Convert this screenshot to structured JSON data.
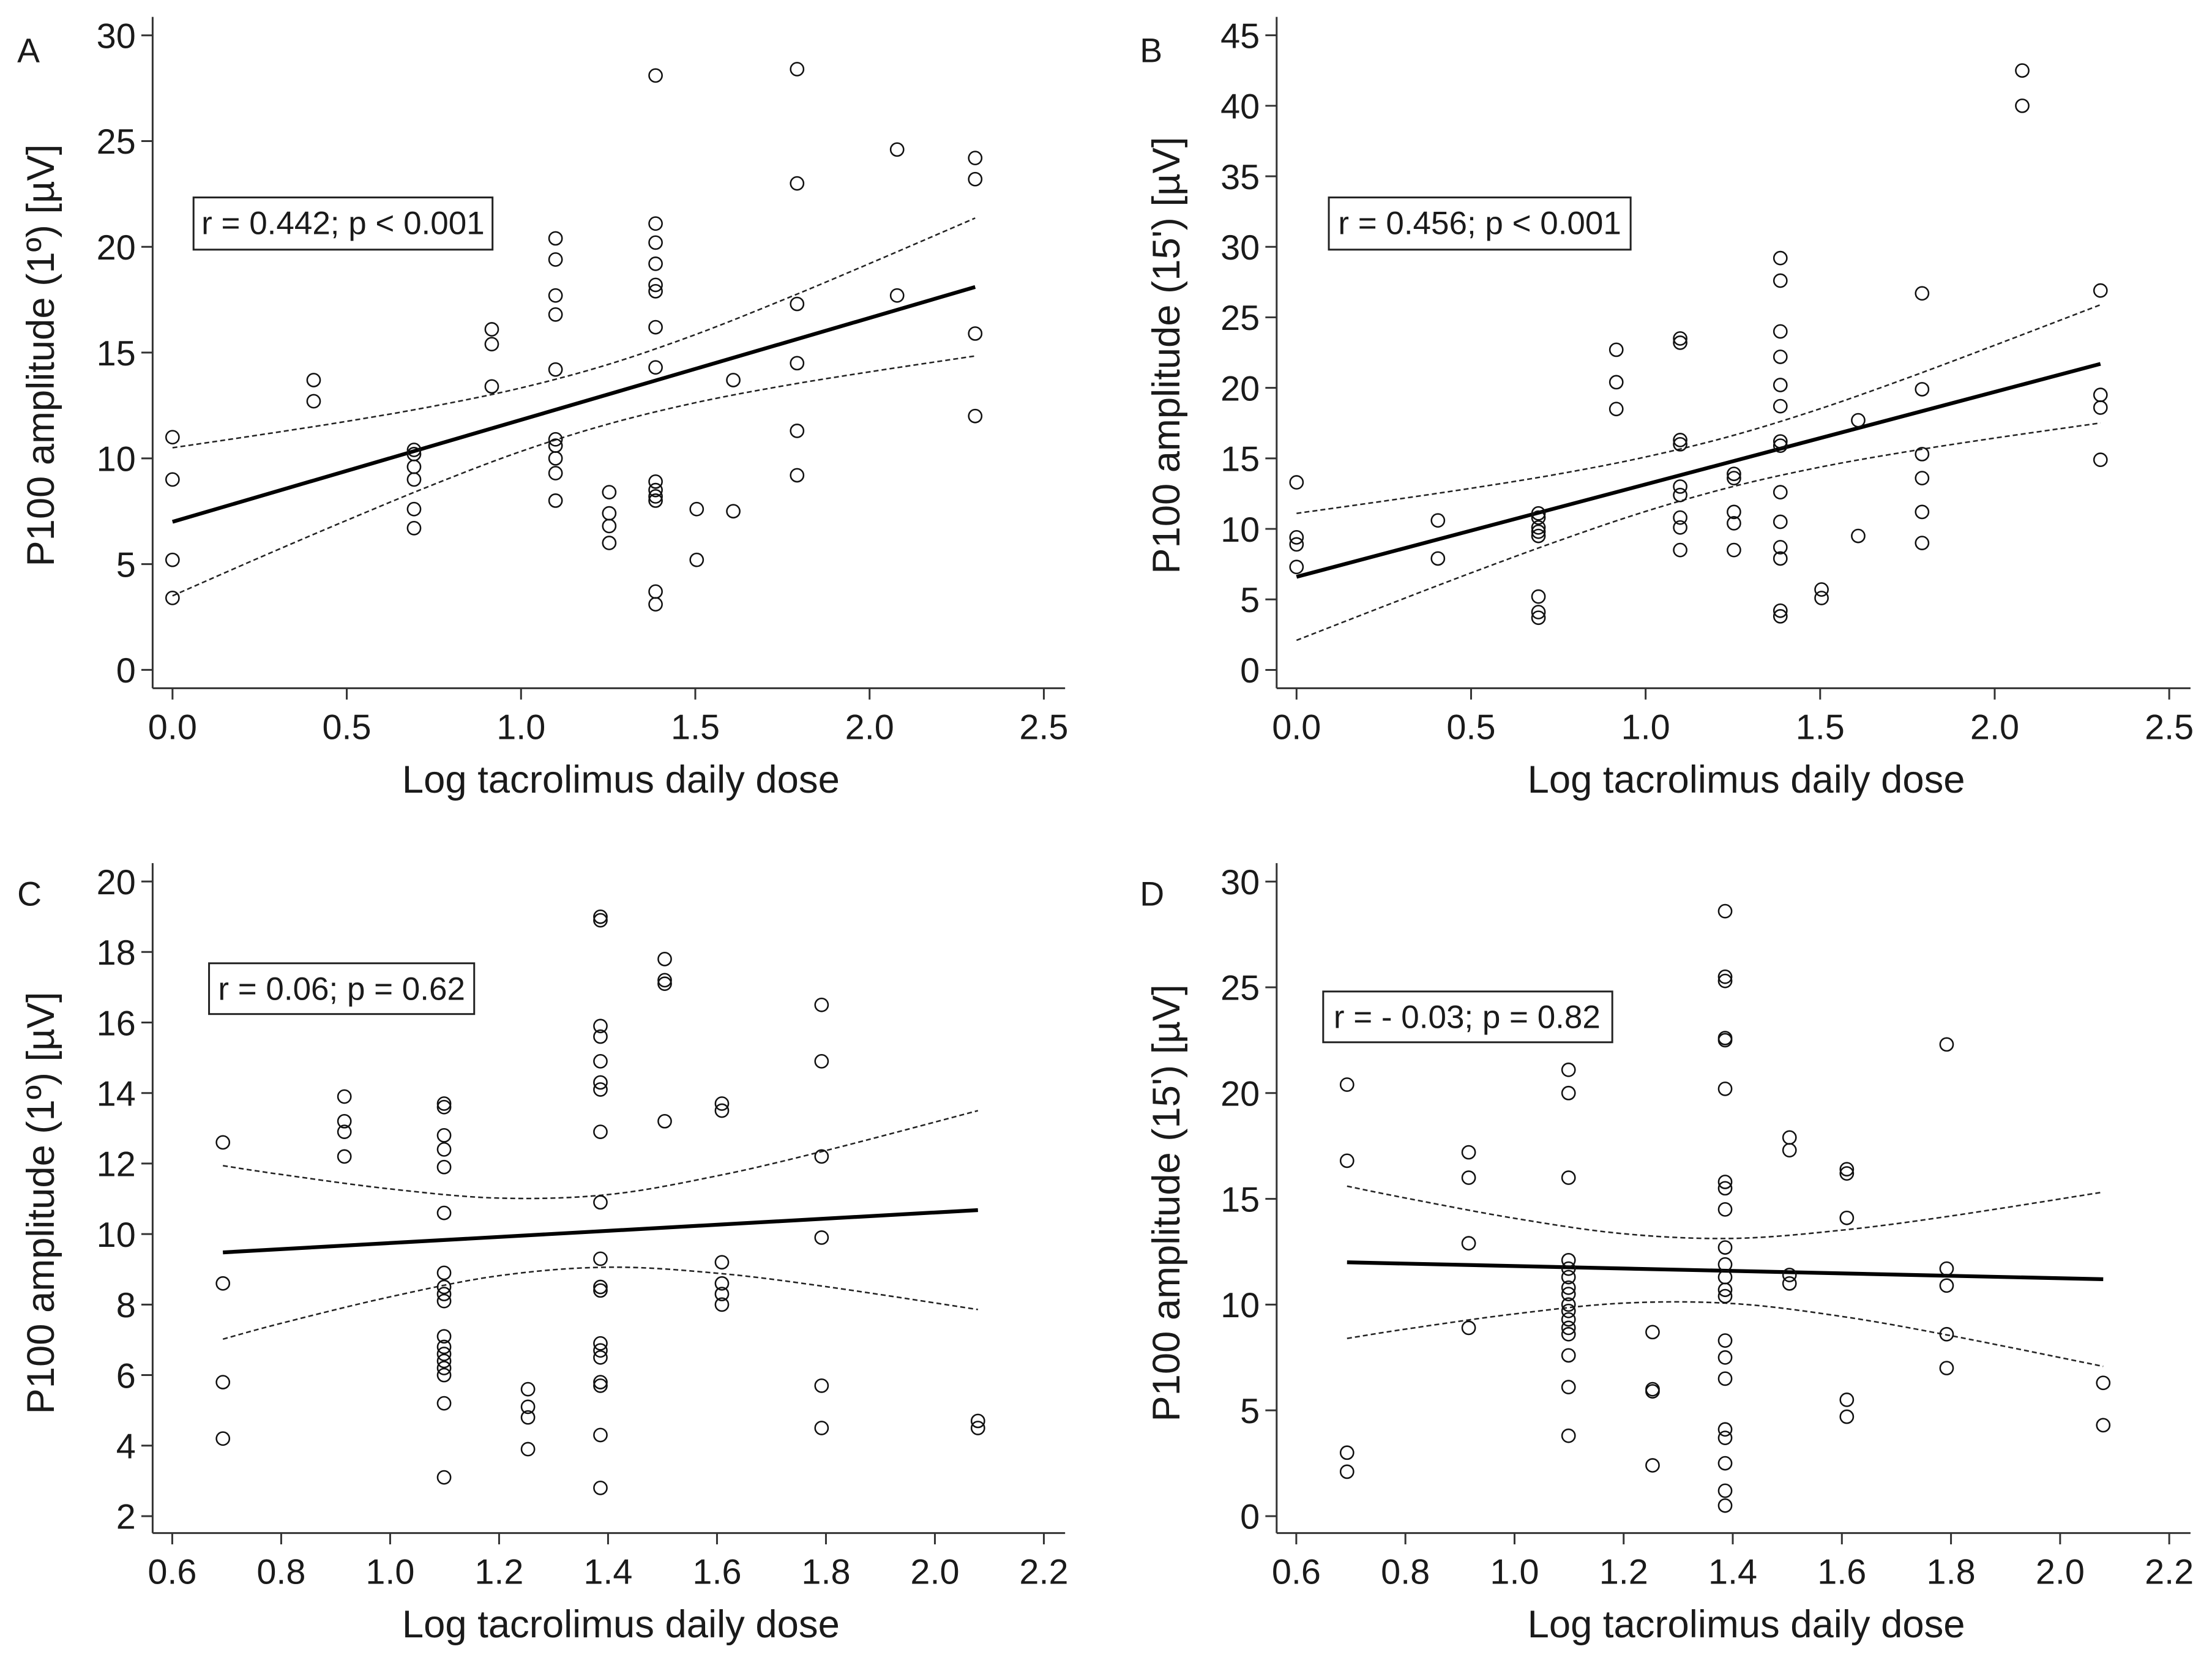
{
  "chart_data": [
    {
      "panel": "A",
      "type": "scatter",
      "xlabel": "Log tacrolimus daily dose",
      "ylabel": "P100 amplitude (1º) [µV]",
      "annotation": "r = 0.442; p < 0.001",
      "xlim": [
        -0.057,
        2.561
      ],
      "ylim": [
        -0.87,
        30.87
      ],
      "x_ticks": [
        0,
        0.5,
        1.0,
        1.5,
        2.0,
        2.5
      ],
      "x_tick_labels": [
        "0.0",
        "0.5",
        "1.0",
        "1.5",
        "2.0",
        "2.5"
      ],
      "y_ticks": [
        0,
        5,
        10,
        15,
        20,
        25,
        30
      ],
      "y_tick_labels": [
        "0",
        "5",
        "10",
        "15",
        "20",
        "25",
        "30"
      ],
      "points": [
        [
          0,
          11.0
        ],
        [
          0,
          9.0
        ],
        [
          0,
          5.2
        ],
        [
          0,
          3.4
        ],
        [
          0.405,
          13.7
        ],
        [
          0.405,
          12.7
        ],
        [
          0.693,
          10.4
        ],
        [
          0.693,
          10.2
        ],
        [
          0.693,
          9.6
        ],
        [
          0.693,
          9.0
        ],
        [
          0.693,
          7.6
        ],
        [
          0.693,
          6.7
        ],
        [
          0.916,
          16.1
        ],
        [
          0.916,
          15.4
        ],
        [
          0.916,
          13.4
        ],
        [
          1.099,
          20.4
        ],
        [
          1.099,
          19.4
        ],
        [
          1.099,
          17.7
        ],
        [
          1.099,
          16.8
        ],
        [
          1.099,
          14.2
        ],
        [
          1.099,
          10.9
        ],
        [
          1.099,
          10.6
        ],
        [
          1.099,
          10.0
        ],
        [
          1.099,
          9.3
        ],
        [
          1.099,
          8.0
        ],
        [
          1.253,
          8.4
        ],
        [
          1.253,
          7.4
        ],
        [
          1.253,
          6.8
        ],
        [
          1.253,
          6.0
        ],
        [
          1.386,
          28.1
        ],
        [
          1.386,
          21.1
        ],
        [
          1.386,
          20.2
        ],
        [
          1.386,
          19.2
        ],
        [
          1.386,
          18.2
        ],
        [
          1.386,
          17.9
        ],
        [
          1.386,
          16.2
        ],
        [
          1.386,
          14.3
        ],
        [
          1.386,
          8.9
        ],
        [
          1.386,
          8.5
        ],
        [
          1.386,
          8.2
        ],
        [
          1.386,
          8.0
        ],
        [
          1.386,
          3.7
        ],
        [
          1.386,
          3.1
        ],
        [
          1.504,
          7.6
        ],
        [
          1.504,
          5.2
        ],
        [
          1.609,
          13.7
        ],
        [
          1.609,
          7.5
        ],
        [
          1.792,
          28.4
        ],
        [
          1.792,
          23.0
        ],
        [
          1.792,
          17.3
        ],
        [
          1.792,
          14.5
        ],
        [
          1.792,
          11.3
        ],
        [
          1.792,
          9.2
        ],
        [
          2.079,
          24.6
        ],
        [
          2.079,
          17.7
        ],
        [
          2.303,
          24.2
        ],
        [
          2.303,
          23.2
        ],
        [
          2.303,
          15.9
        ],
        [
          2.303,
          12.0
        ]
      ],
      "regression": {
        "x": [
          0,
          2.303
        ],
        "y": [
          7.0,
          18.1
        ]
      },
      "ci": {
        "x": [
          0,
          0.25,
          0.5,
          0.75,
          1.0,
          1.25,
          1.5,
          1.75,
          2.0,
          2.303
        ],
        "upper": [
          10.5,
          11.11,
          11.75,
          12.47,
          13.33,
          14.44,
          15.85,
          17.48,
          19.21,
          21.36
        ],
        "lower": [
          3.5,
          5.31,
          7.07,
          8.77,
          10.33,
          11.62,
          12.63,
          13.42,
          14.09,
          14.84
        ]
      }
    },
    {
      "panel": "B",
      "type": "scatter",
      "xlabel": "Log tacrolimus daily dose",
      "ylabel": "P100 amplitude (15') [µV]",
      "annotation": "r = 0.456; p < 0.001",
      "xlim": [
        -0.057,
        2.561
      ],
      "ylim": [
        -1.3,
        46.3
      ],
      "x_ticks": [
        0,
        0.5,
        1.0,
        1.5,
        2.0,
        2.5
      ],
      "x_tick_labels": [
        "0.0",
        "0.5",
        "1.0",
        "1.5",
        "2.0",
        "2.5"
      ],
      "y_ticks": [
        0,
        5,
        10,
        15,
        20,
        25,
        30,
        35,
        40,
        45
      ],
      "y_tick_labels": [
        "0",
        "5",
        "10",
        "15",
        "20",
        "25",
        "30",
        "35",
        "40",
        "45"
      ],
      "points": [
        [
          0,
          13.3
        ],
        [
          0,
          9.4
        ],
        [
          0,
          8.9
        ],
        [
          0,
          7.3
        ],
        [
          0.405,
          10.6
        ],
        [
          0.405,
          7.9
        ],
        [
          0.693,
          11.1
        ],
        [
          0.693,
          10.8
        ],
        [
          0.693,
          10.1
        ],
        [
          0.693,
          9.8
        ],
        [
          0.693,
          9.5
        ],
        [
          0.693,
          5.2
        ],
        [
          0.693,
          4.1
        ],
        [
          0.693,
          3.7
        ],
        [
          0.916,
          22.7
        ],
        [
          0.916,
          20.4
        ],
        [
          0.916,
          18.5
        ],
        [
          1.099,
          23.5
        ],
        [
          1.099,
          23.2
        ],
        [
          1.099,
          16.3
        ],
        [
          1.099,
          16.0
        ],
        [
          1.099,
          13.0
        ],
        [
          1.099,
          12.4
        ],
        [
          1.099,
          10.8
        ],
        [
          1.099,
          10.1
        ],
        [
          1.099,
          8.5
        ],
        [
          1.253,
          13.9
        ],
        [
          1.253,
          13.6
        ],
        [
          1.253,
          11.2
        ],
        [
          1.253,
          10.4
        ],
        [
          1.253,
          8.5
        ],
        [
          1.386,
          29.2
        ],
        [
          1.386,
          27.6
        ],
        [
          1.386,
          24.0
        ],
        [
          1.386,
          22.2
        ],
        [
          1.386,
          20.2
        ],
        [
          1.386,
          18.7
        ],
        [
          1.386,
          16.2
        ],
        [
          1.386,
          15.9
        ],
        [
          1.386,
          12.6
        ],
        [
          1.386,
          10.5
        ],
        [
          1.386,
          8.7
        ],
        [
          1.386,
          7.9
        ],
        [
          1.386,
          4.2
        ],
        [
          1.386,
          3.8
        ],
        [
          1.504,
          5.7
        ],
        [
          1.504,
          5.1
        ],
        [
          1.609,
          17.7
        ],
        [
          1.609,
          9.5
        ],
        [
          1.792,
          26.7
        ],
        [
          1.792,
          19.9
        ],
        [
          1.792,
          15.3
        ],
        [
          1.792,
          13.6
        ],
        [
          1.792,
          11.2
        ],
        [
          1.792,
          9.0
        ],
        [
          2.079,
          42.5
        ],
        [
          2.079,
          40.0
        ],
        [
          2.303,
          26.9
        ],
        [
          2.303,
          19.5
        ],
        [
          2.303,
          18.6
        ],
        [
          2.303,
          14.9
        ]
      ],
      "regression": {
        "x": [
          0,
          2.303
        ],
        "y": [
          6.6,
          21.7
        ]
      },
      "ci": {
        "x": [
          0,
          0.25,
          0.5,
          0.75,
          1.0,
          1.25,
          1.5,
          1.75,
          2.0,
          2.303
        ],
        "upper": [
          11.1,
          11.97,
          12.88,
          13.89,
          15.1,
          16.62,
          18.52,
          20.7,
          23.02,
          25.89
        ],
        "lower": [
          2.1,
          4.51,
          6.88,
          9.15,
          11.24,
          13.0,
          14.38,
          15.48,
          16.44,
          17.51
        ]
      }
    },
    {
      "panel": "C",
      "type": "scatter",
      "xlabel": "Log tacrolimus daily dose",
      "ylabel": "P100 amplitude (1º) [µV]",
      "annotation": "r = 0.06; p = 0.62",
      "xlim": [
        0.564,
        2.239
      ],
      "ylim": [
        1.52,
        20.52
      ],
      "x_ticks": [
        0.6,
        0.8,
        1.0,
        1.2,
        1.4,
        1.6,
        1.8,
        2.0,
        2.2
      ],
      "x_tick_labels": [
        "0.6",
        "0.8",
        "1.0",
        "1.2",
        "1.4",
        "1.6",
        "1.8",
        "2.0",
        "2.2"
      ],
      "y_ticks": [
        2,
        4,
        6,
        8,
        10,
        12,
        14,
        16,
        18,
        20
      ],
      "y_tick_labels": [
        "2",
        "4",
        "6",
        "8",
        "10",
        "12",
        "14",
        "16",
        "18",
        "20"
      ],
      "points": [
        [
          0.693,
          12.6
        ],
        [
          0.693,
          8.6
        ],
        [
          0.693,
          5.8
        ],
        [
          0.693,
          4.2
        ],
        [
          0.916,
          13.9
        ],
        [
          0.916,
          13.2
        ],
        [
          0.916,
          12.9
        ],
        [
          0.916,
          12.2
        ],
        [
          1.099,
          13.7
        ],
        [
          1.099,
          13.6
        ],
        [
          1.099,
          12.8
        ],
        [
          1.099,
          12.4
        ],
        [
          1.099,
          11.9
        ],
        [
          1.099,
          10.6
        ],
        [
          1.099,
          8.9
        ],
        [
          1.099,
          8.5
        ],
        [
          1.099,
          8.3
        ],
        [
          1.099,
          8.1
        ],
        [
          1.099,
          7.1
        ],
        [
          1.099,
          6.8
        ],
        [
          1.099,
          6.6
        ],
        [
          1.099,
          6.4
        ],
        [
          1.099,
          6.2
        ],
        [
          1.099,
          6.0
        ],
        [
          1.099,
          5.2
        ],
        [
          1.099,
          3.1
        ],
        [
          1.253,
          5.6
        ],
        [
          1.253,
          5.1
        ],
        [
          1.253,
          4.8
        ],
        [
          1.253,
          3.9
        ],
        [
          1.386,
          19.0
        ],
        [
          1.386,
          18.9
        ],
        [
          1.386,
          15.9
        ],
        [
          1.386,
          15.6
        ],
        [
          1.386,
          14.9
        ],
        [
          1.386,
          14.3
        ],
        [
          1.386,
          14.1
        ],
        [
          1.386,
          12.9
        ],
        [
          1.386,
          10.9
        ],
        [
          1.386,
          9.3
        ],
        [
          1.386,
          8.5
        ],
        [
          1.386,
          8.4
        ],
        [
          1.386,
          6.9
        ],
        [
          1.386,
          6.7
        ],
        [
          1.386,
          6.5
        ],
        [
          1.386,
          5.8
        ],
        [
          1.386,
          5.7
        ],
        [
          1.386,
          4.3
        ],
        [
          1.386,
          2.8
        ],
        [
          1.504,
          17.8
        ],
        [
          1.504,
          17.2
        ],
        [
          1.504,
          17.1
        ],
        [
          1.504,
          13.2
        ],
        [
          1.609,
          13.7
        ],
        [
          1.609,
          13.5
        ],
        [
          1.609,
          9.2
        ],
        [
          1.609,
          8.6
        ],
        [
          1.609,
          8.3
        ],
        [
          1.609,
          8.0
        ],
        [
          1.792,
          16.5
        ],
        [
          1.792,
          14.9
        ],
        [
          1.792,
          12.2
        ],
        [
          1.792,
          9.9
        ],
        [
          1.792,
          5.7
        ],
        [
          1.792,
          4.5
        ],
        [
          2.079,
          4.7
        ],
        [
          2.079,
          4.5
        ]
      ],
      "regression": {
        "x": [
          0.693,
          2.079
        ],
        "y": [
          9.48,
          10.68
        ]
      },
      "ci": {
        "x": [
          0.693,
          0.8,
          1.0,
          1.2,
          1.4,
          1.6,
          1.8,
          2.079
        ],
        "upper": [
          11.94,
          11.69,
          11.28,
          11.02,
          11.12,
          11.65,
          12.37,
          13.5
        ],
        "lower": [
          7.02,
          7.47,
          8.22,
          8.82,
          9.06,
          8.89,
          8.51,
          7.86
        ]
      }
    },
    {
      "panel": "D",
      "type": "scatter",
      "xlabel": "Log tacrolimus daily dose",
      "ylabel": "P100 amplitude (15') [µV]",
      "annotation": "r = - 0.03; p = 0.82",
      "xlim": [
        0.564,
        2.239
      ],
      "ylim": [
        -0.8,
        30.87
      ],
      "x_ticks": [
        0.6,
        0.8,
        1.0,
        1.2,
        1.4,
        1.6,
        1.8,
        2.0,
        2.2
      ],
      "x_tick_labels": [
        "0.6",
        "0.8",
        "1.0",
        "1.2",
        "1.4",
        "1.6",
        "1.8",
        "2.0",
        "2.2"
      ],
      "y_ticks": [
        0,
        5,
        10,
        15,
        20,
        25,
        30
      ],
      "y_tick_labels": [
        "0",
        "5",
        "10",
        "15",
        "20",
        "25",
        "30"
      ],
      "points": [
        [
          0.693,
          20.4
        ],
        [
          0.693,
          16.8
        ],
        [
          0.693,
          3.0
        ],
        [
          0.693,
          2.1
        ],
        [
          0.916,
          17.2
        ],
        [
          0.916,
          16.0
        ],
        [
          0.916,
          12.9
        ],
        [
          0.916,
          8.9
        ],
        [
          1.099,
          21.1
        ],
        [
          1.099,
          20.0
        ],
        [
          1.099,
          16.0
        ],
        [
          1.099,
          12.1
        ],
        [
          1.099,
          11.7
        ],
        [
          1.099,
          11.3
        ],
        [
          1.099,
          10.8
        ],
        [
          1.099,
          10.5
        ],
        [
          1.099,
          10.0
        ],
        [
          1.099,
          9.7
        ],
        [
          1.099,
          9.3
        ],
        [
          1.099,
          8.9
        ],
        [
          1.099,
          8.6
        ],
        [
          1.099,
          7.6
        ],
        [
          1.099,
          6.1
        ],
        [
          1.099,
          3.8
        ],
        [
          1.253,
          8.7
        ],
        [
          1.253,
          6.0
        ],
        [
          1.253,
          5.9
        ],
        [
          1.253,
          2.4
        ],
        [
          1.386,
          28.6
        ],
        [
          1.386,
          25.5
        ],
        [
          1.386,
          25.3
        ],
        [
          1.386,
          22.6
        ],
        [
          1.386,
          22.5
        ],
        [
          1.386,
          20.2
        ],
        [
          1.386,
          15.8
        ],
        [
          1.386,
          15.5
        ],
        [
          1.386,
          14.5
        ],
        [
          1.386,
          12.7
        ],
        [
          1.386,
          11.9
        ],
        [
          1.386,
          11.3
        ],
        [
          1.386,
          10.7
        ],
        [
          1.386,
          10.4
        ],
        [
          1.386,
          8.3
        ],
        [
          1.386,
          7.5
        ],
        [
          1.386,
          6.5
        ],
        [
          1.386,
          4.1
        ],
        [
          1.386,
          3.7
        ],
        [
          1.386,
          2.5
        ],
        [
          1.386,
          1.2
        ],
        [
          1.386,
          0.5
        ],
        [
          1.504,
          17.9
        ],
        [
          1.504,
          17.3
        ],
        [
          1.504,
          11.4
        ],
        [
          1.504,
          11.0
        ],
        [
          1.609,
          16.4
        ],
        [
          1.609,
          16.2
        ],
        [
          1.609,
          14.1
        ],
        [
          1.609,
          5.5
        ],
        [
          1.609,
          4.7
        ],
        [
          1.792,
          22.3
        ],
        [
          1.792,
          11.7
        ],
        [
          1.792,
          10.9
        ],
        [
          1.792,
          8.6
        ],
        [
          1.792,
          7.0
        ],
        [
          2.079,
          6.3
        ],
        [
          2.079,
          4.3
        ]
      ],
      "regression": {
        "x": [
          0.693,
          2.079
        ],
        "y": [
          12.0,
          11.2
        ]
      },
      "ci": {
        "x": [
          0.693,
          0.8,
          1.0,
          1.2,
          1.4,
          1.6,
          1.8,
          2.079
        ],
        "upper": [
          15.6,
          15.04,
          14.08,
          13.35,
          13.13,
          13.52,
          14.19,
          15.32
        ],
        "lower": [
          8.4,
          8.84,
          9.56,
          10.07,
          10.05,
          9.44,
          8.53,
          7.08
        ]
      }
    }
  ]
}
